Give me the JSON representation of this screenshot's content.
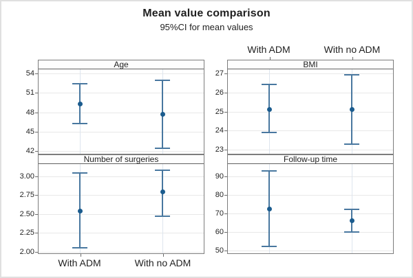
{
  "title": "Mean value comparison",
  "subtitle": "95%CI for mean values",
  "groups": [
    "With ADM",
    "With no ADM"
  ],
  "colors": {
    "marker": "#1b5c8e",
    "whisker": "#48779f",
    "h_grid": "#e8e8e8",
    "v_grid": "#dde5ee",
    "panel_border": "#7c7c7c",
    "strip_border": "#5f5f5f",
    "figure_border": "#e0e0e0",
    "text": "#1f1f1f"
  },
  "chart_data": [
    {
      "type": "errorbar",
      "panel": "Age",
      "categories": [
        "With ADM",
        "With no ADM"
      ],
      "ylim": [
        41.6,
        54.65
      ],
      "ytick_values": [
        54,
        51,
        48,
        45,
        42
      ],
      "ytick_labels": [
        "54",
        "51",
        "48",
        "45",
        "42"
      ],
      "series": [
        {
          "group": "With ADM",
          "mean": 49.3,
          "ci_low": 46.3,
          "ci_high": 52.4
        },
        {
          "group": "With no ADM",
          "mean": 47.7,
          "ci_low": 42.4,
          "ci_high": 53.0
        }
      ]
    },
    {
      "type": "errorbar",
      "panel": "BMI",
      "categories": [
        "With ADM",
        "With no ADM"
      ],
      "ylim": [
        22.8,
        27.2
      ],
      "ytick_values": [
        27,
        26,
        25,
        24,
        23
      ],
      "ytick_labels": [
        "27",
        "26",
        "25",
        "24",
        "23"
      ],
      "series": [
        {
          "group": "With ADM",
          "mean": 25.1,
          "ci_low": 23.9,
          "ci_high": 26.4
        },
        {
          "group": "With no ADM",
          "mean": 25.1,
          "ci_low": 23.3,
          "ci_high": 26.9
        }
      ]
    },
    {
      "type": "errorbar",
      "panel": "Number of surgeries",
      "categories": [
        "With ADM",
        "With no ADM"
      ],
      "ylim": [
        1.98,
        3.16
      ],
      "ytick_values": [
        3.0,
        2.75,
        2.5,
        2.25,
        2.0
      ],
      "ytick_labels": [
        "3.00",
        "2.75",
        "2.50",
        "2.25",
        "2.00"
      ],
      "series": [
        {
          "group": "With ADM",
          "mean": 2.54,
          "ci_low": 2.05,
          "ci_high": 3.04
        },
        {
          "group": "With no ADM",
          "mean": 2.79,
          "ci_low": 2.47,
          "ci_high": 3.08
        }
      ]
    },
    {
      "type": "errorbar",
      "panel": "Follow-up time",
      "categories": [
        "With ADM",
        "With no ADM"
      ],
      "ylim": [
        48.4,
        96.6
      ],
      "ytick_values": [
        90,
        80,
        70,
        60,
        50
      ],
      "ytick_labels": [
        "90",
        "80",
        "70",
        "60",
        "50"
      ],
      "series": [
        {
          "group": "With ADM",
          "mean": 72.5,
          "ci_low": 52.0,
          "ci_high": 93.0
        },
        {
          "group": "With no ADM",
          "mean": 66.0,
          "ci_low": 60.0,
          "ci_high": 72.0
        }
      ]
    }
  ]
}
